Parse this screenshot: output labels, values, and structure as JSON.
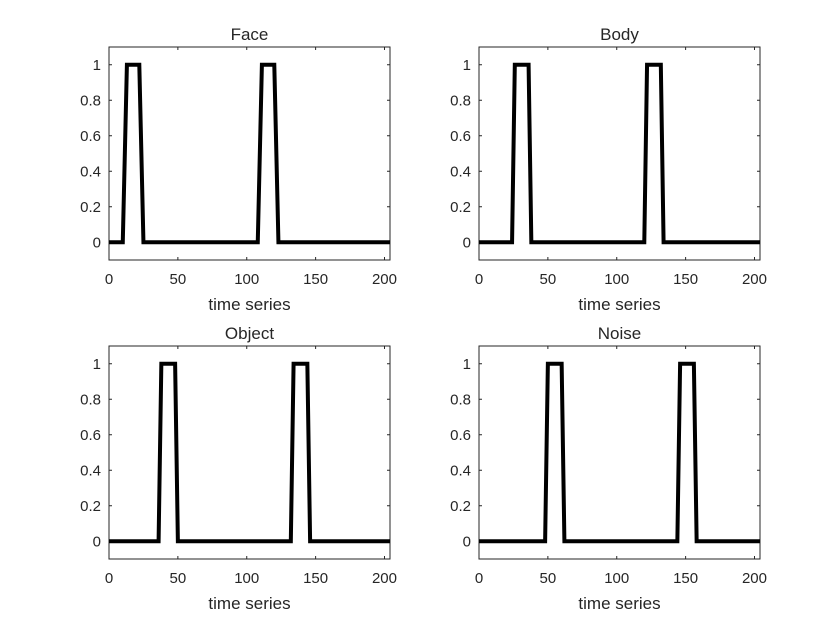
{
  "chart_data": [
    {
      "type": "line",
      "title": "Face",
      "xlabel": "time series",
      "ylabel": "",
      "xlim": [
        0,
        204
      ],
      "ylim": [
        -0.1,
        1.1
      ],
      "xticks": [
        0,
        50,
        100,
        150,
        200
      ],
      "yticks": [
        0,
        0.2,
        0.4,
        0.6,
        0.8,
        1
      ],
      "xtick_labels": [
        "0",
        "50",
        "100",
        "150",
        "200"
      ],
      "ytick_labels": [
        "0",
        "0.2",
        "0.4",
        "0.6",
        "0.8",
        "1"
      ],
      "grid": false,
      "x": [
        0,
        10,
        13,
        22,
        25,
        108,
        111,
        120,
        123,
        204
      ],
      "y": [
        0,
        0,
        1,
        1,
        0,
        0,
        1,
        1,
        0,
        0
      ]
    },
    {
      "type": "line",
      "title": "Body",
      "xlabel": "time series",
      "ylabel": "",
      "xlim": [
        0,
        204
      ],
      "ylim": [
        -0.1,
        1.1
      ],
      "xticks": [
        0,
        50,
        100,
        150,
        200
      ],
      "yticks": [
        0,
        0.2,
        0.4,
        0.6,
        0.8,
        1
      ],
      "xtick_labels": [
        "0",
        "50",
        "100",
        "150",
        "200"
      ],
      "ytick_labels": [
        "0",
        "0.2",
        "0.4",
        "0.6",
        "0.8",
        "1"
      ],
      "grid": false,
      "x": [
        0,
        24,
        26,
        36,
        38,
        120,
        122,
        132,
        134,
        204
      ],
      "y": [
        0,
        0,
        1,
        1,
        0,
        0,
        1,
        1,
        0,
        0
      ]
    },
    {
      "type": "line",
      "title": "Object",
      "xlabel": "time series",
      "ylabel": "",
      "xlim": [
        0,
        204
      ],
      "ylim": [
        -0.1,
        1.1
      ],
      "xticks": [
        0,
        50,
        100,
        150,
        200
      ],
      "yticks": [
        0,
        0.2,
        0.4,
        0.6,
        0.8,
        1
      ],
      "xtick_labels": [
        "0",
        "50",
        "100",
        "150",
        "200"
      ],
      "ytick_labels": [
        "0",
        "0.2",
        "0.4",
        "0.6",
        "0.8",
        "1"
      ],
      "grid": false,
      "x": [
        0,
        36,
        38,
        48,
        50,
        132,
        134,
        144,
        146,
        204
      ],
      "y": [
        0,
        0,
        1,
        1,
        0,
        0,
        1,
        1,
        0,
        0
      ]
    },
    {
      "type": "line",
      "title": "Noise",
      "xlabel": "time series",
      "ylabel": "",
      "xlim": [
        0,
        204
      ],
      "ylim": [
        -0.1,
        1.1
      ],
      "xticks": [
        0,
        50,
        100,
        150,
        200
      ],
      "yticks": [
        0,
        0.2,
        0.4,
        0.6,
        0.8,
        1
      ],
      "xtick_labels": [
        "0",
        "50",
        "100",
        "150",
        "200"
      ],
      "ytick_labels": [
        "0",
        "0.2",
        "0.4",
        "0.6",
        "0.8",
        "1"
      ],
      "grid": false,
      "x": [
        0,
        48,
        50,
        60,
        62,
        144,
        146,
        156,
        158,
        204
      ],
      "y": [
        0,
        0,
        1,
        1,
        0,
        0,
        1,
        1,
        0,
        0
      ]
    }
  ],
  "colors": {
    "line": "#000000",
    "axis": "#262626",
    "background": "#ffffff"
  }
}
